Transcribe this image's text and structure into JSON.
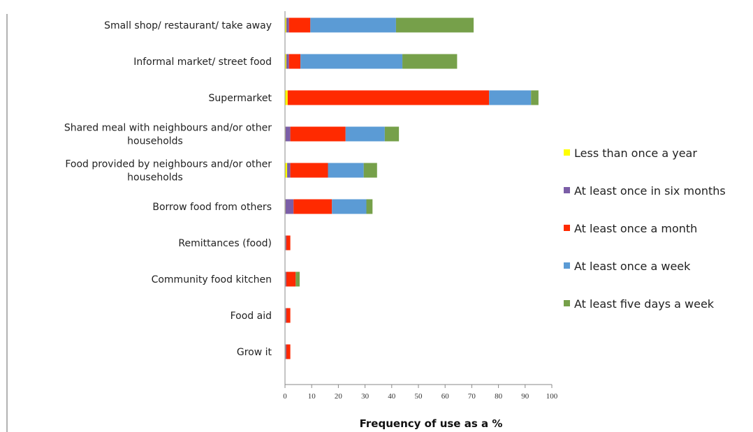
{
  "header_caption": "",
  "chart_data": {
    "type": "bar",
    "orientation": "horizontal",
    "stacked": true,
    "title": "",
    "xlabel": "Frequency of use as a %",
    "ylabel": "",
    "xlim": [
      0,
      100
    ],
    "xticks": [
      0,
      10,
      20,
      30,
      40,
      50,
      60,
      70,
      80,
      90,
      100
    ],
    "grid": false,
    "legend_position": "right",
    "categories": [
      "Small shop/ restaurant/ take away",
      "Informal market/ street food",
      "Supermarket",
      "Shared meal with neighbours and/or other households",
      "Food provided by neighbours and/or other households",
      "Borrow food from others",
      "Remittances (food)",
      "Community food kitchen",
      "Food aid",
      "Grow it"
    ],
    "category_lines": [
      [
        "Small shop/ restaurant/ take away"
      ],
      [
        "Informal market/ street food"
      ],
      [
        "Supermarket"
      ],
      [
        "Shared meal with neighbours and/or other",
        "households"
      ],
      [
        "Food provided by neighbours and/or other",
        "households"
      ],
      [
        "Borrow food from others"
      ],
      [
        "Remittances (food)"
      ],
      [
        "Community food kitchen"
      ],
      [
        "Food aid"
      ],
      [
        "Grow it"
      ]
    ],
    "series": [
      {
        "name": "Less than once a year",
        "color": "#ffff00",
        "values": [
          0.5,
          0.5,
          1.0,
          0.2,
          0.8,
          0.2,
          0.2,
          0.2,
          0.2,
          0.2
        ]
      },
      {
        "name": "At least once in six months",
        "color": "#7b5ea7",
        "values": [
          1.0,
          1.0,
          0.0,
          1.8,
          1.2,
          3.0,
          0.3,
          0.3,
          0.3,
          0.3
        ]
      },
      {
        "name": "At least once a month",
        "color": "#ff2a00",
        "values": [
          8.0,
          4.3,
          75.5,
          20.7,
          14.1,
          14.4,
          1.5,
          3.5,
          1.5,
          1.5
        ]
      },
      {
        "name": "At least once a week",
        "color": "#5b9bd5",
        "values": [
          32.1,
          38.2,
          15.7,
          14.7,
          13.4,
          12.9,
          0.0,
          0.0,
          0.0,
          0.0
        ]
      },
      {
        "name": "At least five days a week",
        "color": "#76a04a",
        "values": [
          29.1,
          20.5,
          2.8,
          5.3,
          5.0,
          2.3,
          0.0,
          1.5,
          0.0,
          0.0
        ]
      }
    ]
  }
}
